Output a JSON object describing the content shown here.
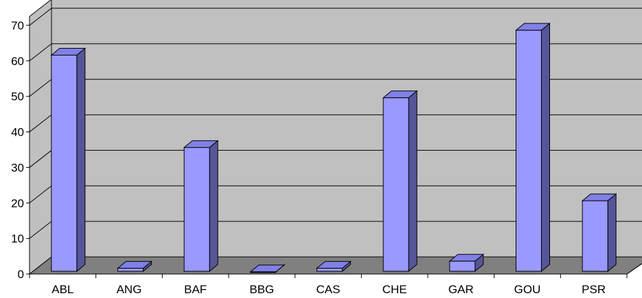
{
  "chart_data": {
    "type": "bar",
    "style": "3d-column",
    "categories": [
      "ABL",
      "ANG",
      "BAF",
      "BBG",
      "CAS",
      "CHE",
      "GAR",
      "GOU",
      "PSR"
    ],
    "values": [
      62,
      2,
      36,
      1,
      2,
      50,
      4,
      69,
      21
    ],
    "ylim": [
      0,
      70
    ],
    "yticks": [
      "0",
      "10",
      "20",
      "30",
      "40",
      "50",
      "60",
      "70"
    ],
    "grid": true,
    "legend": "none",
    "colors": {
      "bar_front": "#9999ff",
      "bar_top": "#8080e6",
      "bar_side": "#555599",
      "wall": "#c0c0c0",
      "floor": "#808080",
      "gridline": "#000000"
    }
  }
}
